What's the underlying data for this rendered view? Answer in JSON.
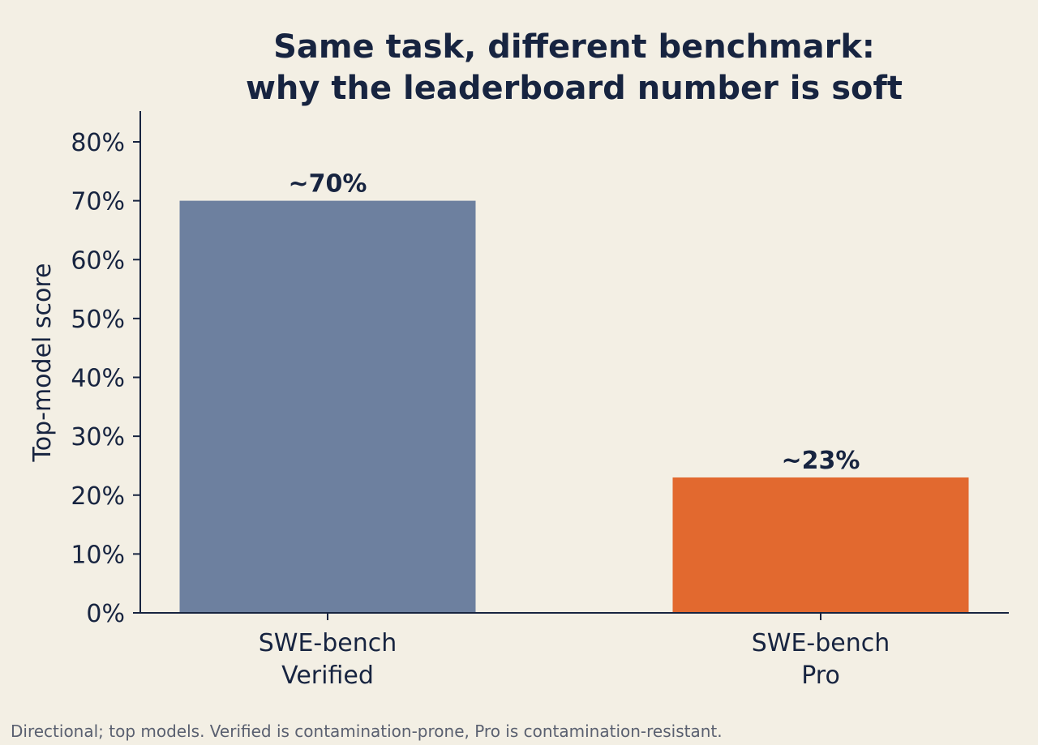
{
  "chart_data": {
    "type": "bar",
    "title_lines": [
      "Same task, different benchmark:",
      "why the leaderboard number is soft"
    ],
    "ylabel": "Top-model score",
    "xlabel": "",
    "categories": [
      [
        "SWE-bench",
        "Verified"
      ],
      [
        "SWE-bench",
        "Pro"
      ]
    ],
    "values": [
      70,
      23
    ],
    "value_labels": [
      "~70%",
      "~23%"
    ],
    "bar_colors": [
      "#6d809f",
      "#e2692f"
    ],
    "ylim": [
      0,
      85
    ],
    "yticks": [
      0,
      10,
      20,
      30,
      40,
      50,
      60,
      70,
      80
    ],
    "ytick_labels": [
      "0%",
      "10%",
      "20%",
      "30%",
      "40%",
      "50%",
      "60%",
      "70%",
      "80%"
    ],
    "grid": false,
    "footnote": "Directional; top models. Verified is contamination-prone, Pro is contamination-resistant."
  }
}
